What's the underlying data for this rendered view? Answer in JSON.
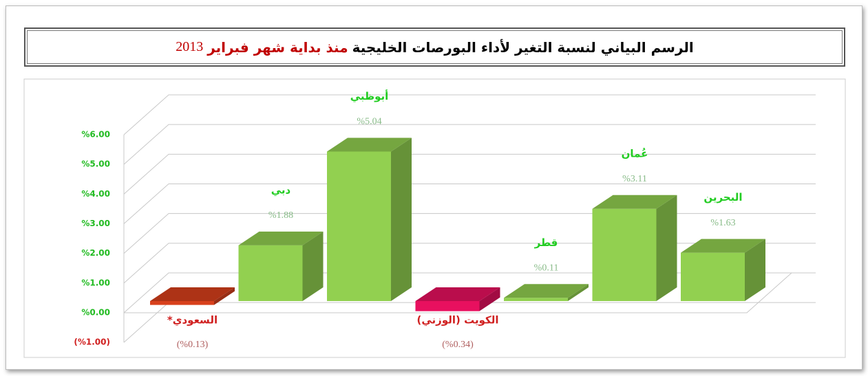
{
  "chart_data": {
    "type": "bar3d",
    "title": "الرسم البياني لنسبة التغير لأداء البورصات الخليجية",
    "subtitle": "منذ بداية شهر فبراير",
    "year": "2013",
    "categories": [
      "السعودي*",
      "دبي",
      "أبوظبي",
      "الكويت (الوزني)",
      "قطر",
      "عُمان",
      "البحرين"
    ],
    "values": [
      -0.13,
      1.88,
      5.04,
      -0.34,
      0.11,
      3.11,
      1.63
    ],
    "value_labels": [
      "(%0.13)",
      "%1.88",
      "%5.04",
      "(%0.34)",
      "%0.11",
      "%3.11",
      "%1.63"
    ],
    "colors": [
      "#d8401c",
      "#92d050",
      "#92d050",
      "#e8105f",
      "#92d050",
      "#92d050",
      "#92d050"
    ],
    "ylim": [
      -1,
      6
    ],
    "yticks": [
      {
        "value": -1,
        "label": "(%1.00)"
      },
      {
        "value": 0,
        "label": "%0.00"
      },
      {
        "value": 1,
        "label": "%1.00"
      },
      {
        "value": 2,
        "label": "%2.00"
      },
      {
        "value": 3,
        "label": "%3.00"
      },
      {
        "value": 4,
        "label": "%4.00"
      },
      {
        "value": 5,
        "label": "%5.00"
      },
      {
        "value": 6,
        "label": "%6.00"
      }
    ],
    "grid": true
  }
}
